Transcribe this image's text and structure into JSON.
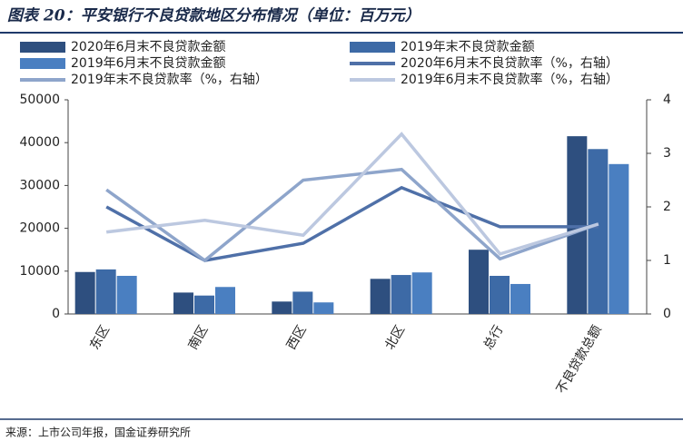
{
  "chart_data": {
    "type": "combo",
    "title": "图表 20：平安银行不良贷款地区分布情况（单位：百万元）",
    "source": "来源：上市公司年报，国金证券研究所",
    "categories": [
      "东区",
      "南区",
      "西区",
      "北区",
      "总行",
      "不良贷款总额"
    ],
    "series": [
      {
        "name": "2020年6月末不良贷款金额",
        "type": "bar",
        "color": "#2e4f7f",
        "values": [
          9800,
          5000,
          2900,
          8200,
          15000,
          41500
        ]
      },
      {
        "name": "2019年末不良贷款金额",
        "type": "bar",
        "color": "#3d6aa6",
        "values": [
          10400,
          4300,
          5200,
          9100,
          8900,
          38500
        ]
      },
      {
        "name": "2019年6月末不良贷款金额",
        "type": "bar",
        "color": "#4a7fc1",
        "values": [
          8900,
          6300,
          2700,
          9700,
          7000,
          35000
        ]
      },
      {
        "name": "2020年6月末不良贷款率（%，右轴）",
        "type": "line",
        "axis": "y2",
        "color": "#4f70a8",
        "values": [
          2.0,
          1.0,
          1.32,
          2.36,
          1.63,
          1.63
        ]
      },
      {
        "name": "2019年末不良贷款率（%，右轴）",
        "type": "line",
        "axis": "y2",
        "color": "#8ea5cb",
        "values": [
          2.32,
          1.0,
          2.5,
          2.7,
          1.03,
          1.68
        ]
      },
      {
        "name": "2019年6月末不良贷款率（%，右轴）",
        "type": "line",
        "axis": "y2",
        "color": "#bcc8e0",
        "values": [
          1.53,
          1.75,
          1.47,
          3.36,
          1.12,
          1.68
        ]
      }
    ],
    "ylim": [
      0,
      50000
    ],
    "yticks": [
      0,
      10000,
      20000,
      30000,
      40000,
      50000
    ],
    "y2lim": [
      0,
      4
    ],
    "y2ticks": [
      0,
      1,
      2,
      3,
      4
    ]
  }
}
